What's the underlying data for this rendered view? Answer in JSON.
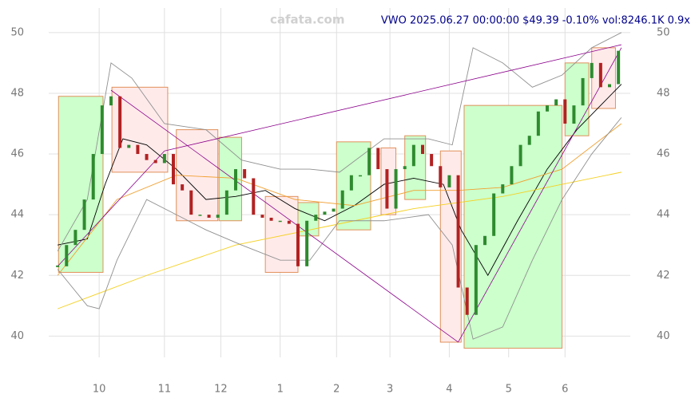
{
  "chart_data": {
    "type": "candlestick",
    "title": "VWO 2025.06.27 00:00:00 $49.39 -0.10% vol:8246.1K 0.9x",
    "watermark": "cafata.com",
    "x": [
      0,
      3,
      6,
      9,
      12,
      15,
      18,
      21,
      24,
      27,
      30,
      33,
      36,
      39,
      42,
      45,
      48,
      51,
      54,
      57,
      60,
      63,
      66,
      69,
      72,
      75,
      78,
      81,
      84,
      87,
      90,
      93,
      96,
      99,
      102,
      105,
      108,
      111,
      114,
      117,
      120,
      123,
      126,
      129,
      132,
      135,
      138,
      141,
      144,
      147,
      150,
      153,
      156,
      159,
      162,
      165,
      168,
      171,
      174,
      177,
      180,
      183,
      186,
      189
    ],
    "close": [
      42.3,
      43.0,
      43.5,
      44.5,
      46.0,
      47.6,
      47.9,
      46.2,
      46.3,
      46.0,
      45.8,
      45.7,
      46.0,
      45.0,
      44.8,
      44.0,
      44.0,
      43.9,
      44.0,
      44.8,
      45.5,
      45.2,
      44.0,
      43.9,
      43.8,
      43.8,
      43.7,
      42.3,
      43.8,
      44.0,
      44.1,
      44.2,
      44.8,
      45.3,
      45.3,
      46.2,
      45.5,
      44.2,
      45.5,
      45.6,
      46.3,
      46.0,
      45.6,
      44.9,
      45.3,
      41.6,
      40.7,
      43.0,
      43.3,
      44.7,
      45.0,
      45.6,
      46.3,
      46.6,
      47.4,
      47.6,
      47.8,
      47.0,
      47.6,
      48.5,
      49.0,
      48.2,
      48.3,
      49.4
    ],
    "up_color": "#2e8b2e",
    "down_color": "#b22222",
    "overlays": [
      {
        "color": "#000000",
        "x": [
          0,
          10,
          16,
          22,
          30,
          40,
          50,
          60,
          70,
          80,
          90,
          100,
          110,
          120,
          130,
          136,
          145,
          155,
          165,
          175,
          182,
          190
        ],
        "values": [
          43.0,
          43.2,
          45.0,
          46.5,
          46.3,
          45.5,
          44.5,
          44.6,
          44.8,
          44.2,
          43.8,
          44.3,
          45.0,
          45.2,
          45.0,
          43.5,
          42.0,
          43.8,
          45.5,
          46.8,
          47.5,
          48.3
        ]
      },
      {
        "color": "#f0a030",
        "x": [
          0,
          20,
          40,
          60,
          80,
          100,
          120,
          135,
          150,
          170,
          190
        ],
        "values": [
          42.0,
          44.5,
          45.3,
          45.2,
          44.5,
          44.3,
          44.8,
          44.8,
          44.9,
          45.5,
          47.0
        ]
      },
      {
        "color": "#f5d020",
        "x": [
          0,
          30,
          60,
          90,
          120,
          150,
          170,
          190
        ],
        "values": [
          40.9,
          42.0,
          43.0,
          43.6,
          44.2,
          44.6,
          45.0,
          45.4
        ]
      },
      {
        "color": "#909090",
        "x": [
          0,
          10,
          18,
          25,
          36,
          50,
          62,
          75,
          85,
          95,
          110,
          125,
          133,
          140,
          150,
          160,
          170,
          180,
          190
        ],
        "values": [
          42.8,
          44.5,
          49.0,
          48.5,
          47.0,
          46.8,
          45.8,
          45.5,
          45.5,
          45.4,
          46.5,
          46.5,
          46.3,
          49.5,
          49.0,
          48.2,
          48.6,
          49.5,
          50.0
        ]
      },
      {
        "color": "#909090",
        "x": [
          0,
          10,
          14,
          20,
          30,
          40,
          50,
          62,
          75,
          85,
          95,
          110,
          125,
          133,
          140,
          150,
          160,
          170,
          180,
          190
        ],
        "values": [
          42.2,
          41.0,
          40.9,
          42.5,
          44.5,
          44.0,
          43.5,
          43.0,
          42.5,
          42.5,
          43.8,
          43.8,
          44.0,
          43.0,
          39.9,
          40.3,
          42.5,
          44.5,
          46.0,
          47.2
        ]
      }
    ],
    "boxes": [
      {
        "x0": 0.3,
        "x1": 15.3,
        "low": 42.1,
        "high": 47.9,
        "color": "#ccffcc"
      },
      {
        "x0": 18.3,
        "x1": 37.1,
        "low": 45.4,
        "high": 48.2,
        "color": "#ffeaea"
      },
      {
        "x0": 40,
        "x1": 54,
        "low": 43.8,
        "high": 46.8,
        "color": "#ffeaea"
      },
      {
        "x0": 54.4,
        "x1": 62,
        "low": 43.8,
        "high": 46.55,
        "color": "#ccffcc"
      },
      {
        "x0": 70,
        "x1": 81,
        "low": 42.1,
        "high": 44.6,
        "color": "#ffeaea"
      },
      {
        "x0": 81,
        "x1": 88,
        "low": 43.3,
        "high": 44.4,
        "color": "#ccffcc"
      },
      {
        "x0": 94,
        "x1": 105.5,
        "low": 43.5,
        "high": 46.4,
        "color": "#ccffcc"
      },
      {
        "x0": 109,
        "x1": 114,
        "low": 44.0,
        "high": 46.2,
        "color": "#ffeaea"
      },
      {
        "x0": 117,
        "x1": 124,
        "low": 44.5,
        "high": 46.6,
        "color": "#ccffcc"
      },
      {
        "x0": 129,
        "x1": 136,
        "low": 39.8,
        "high": 46.1,
        "color": "#ffeaea"
      },
      {
        "x0": 137,
        "x1": 170,
        "low": 39.6,
        "high": 47.6,
        "color": "#ccffcc"
      },
      {
        "x0": 171,
        "x1": 179,
        "low": 46.6,
        "high": 49.0,
        "color": "#ccffcc"
      },
      {
        "x0": 180,
        "x1": 188,
        "low": 47.5,
        "high": 49.5,
        "color": "#ffeaea"
      }
    ],
    "trend_lines": [
      {
        "x": [
          18,
          135
        ],
        "values": [
          48.1,
          39.8
        ]
      },
      {
        "x": [
          36,
          190
        ],
        "values": [
          46.1,
          49.6
        ]
      },
      {
        "x": [
          0,
          36
        ],
        "values": [
          42.3,
          46.1
        ]
      },
      {
        "x": [
          135,
          190
        ],
        "values": [
          39.8,
          49.5
        ]
      }
    ],
    "xlim": [
      -3,
      193
    ],
    "ylim": [
      39.3,
      50.6
    ],
    "xticks": [
      {
        "value": 14,
        "label": "10"
      },
      {
        "value": 36,
        "label": "11"
      },
      {
        "value": 55,
        "label": "12"
      },
      {
        "value": 75,
        "label": "1"
      },
      {
        "value": 94,
        "label": "2"
      },
      {
        "value": 112,
        "label": "3"
      },
      {
        "value": 132,
        "label": "4"
      },
      {
        "value": 152,
        "label": "5"
      },
      {
        "value": 171,
        "label": "6"
      }
    ],
    "yticks": [
      40,
      42,
      44,
      46,
      48,
      50
    ],
    "grid": true
  }
}
